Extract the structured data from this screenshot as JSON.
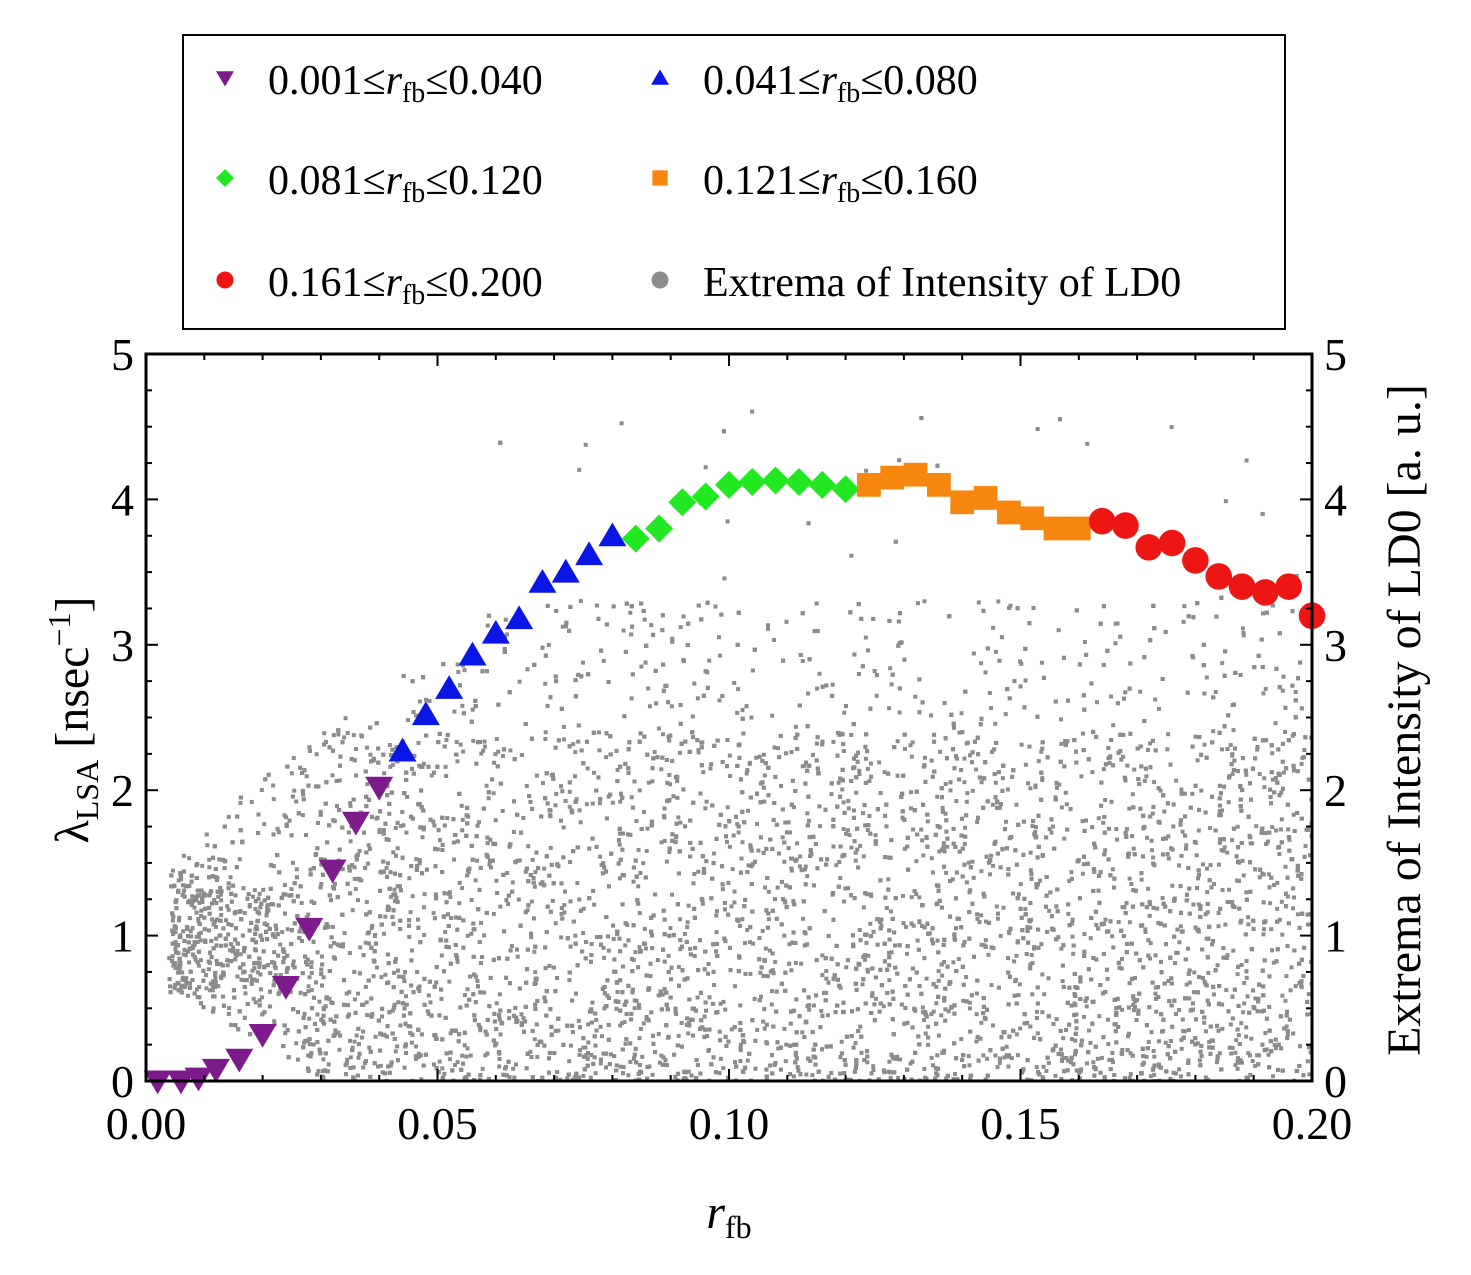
{
  "chart_data": {
    "type": "scatter",
    "title": "",
    "xlabel": {
      "main": "r",
      "sub": "fb"
    },
    "ylabel": {
      "main": "λ",
      "sub": "LSA",
      "unit_prefix": " [nsec",
      "sup": "−1",
      "unit_suffix": "]"
    },
    "y2label": "Extrema of Intensity of LD0 [a. u.]",
    "xlim": [
      0.0,
      0.2
    ],
    "ylim": [
      0,
      5
    ],
    "y2lim": [
      0,
      5
    ],
    "x_ticks": [
      "0.00",
      "0.05",
      "0.10",
      "0.15",
      "0.20"
    ],
    "x_tick_values": [
      0.0,
      0.05,
      0.1,
      0.15,
      0.2
    ],
    "y_ticks": [
      "0",
      "1",
      "2",
      "3",
      "4",
      "5"
    ],
    "y_tick_values": [
      0,
      1,
      2,
      3,
      4,
      5
    ],
    "grid": false,
    "legend_position": "top",
    "series": [
      {
        "name": "0.001≤r_fb≤0.040",
        "label_pre": "0.001≤",
        "label_var": "r",
        "label_sub": "fb",
        "label_post": "≤0.040",
        "marker": "triangle-down",
        "color": "#7d1a8c",
        "x": [
          0.002,
          0.006,
          0.009,
          0.012,
          0.016,
          0.02,
          0.024,
          0.028,
          0.032,
          0.036,
          0.04
        ],
        "y": [
          0.0,
          0.0,
          0.02,
          0.08,
          0.15,
          0.32,
          0.65,
          1.05,
          1.45,
          1.78,
          2.02
        ]
      },
      {
        "name": "0.041≤r_fb≤0.080",
        "label_pre": "0.041≤",
        "label_var": "r",
        "label_sub": "fb",
        "label_post": "≤0.080",
        "marker": "triangle-up",
        "color": "#0a16e6",
        "x": [
          0.044,
          0.048,
          0.052,
          0.056,
          0.06,
          0.064,
          0.068,
          0.072,
          0.076,
          0.08
        ],
        "y": [
          2.27,
          2.52,
          2.7,
          2.93,
          3.08,
          3.18,
          3.43,
          3.5,
          3.62,
          3.75
        ]
      },
      {
        "name": "0.081≤r_fb≤0.120",
        "label_pre": "0.081≤",
        "label_var": "r",
        "label_sub": "fb",
        "label_post": "≤0.120",
        "marker": "diamond",
        "color": "#22e822",
        "x": [
          0.084,
          0.088,
          0.092,
          0.096,
          0.1,
          0.104,
          0.108,
          0.112,
          0.116,
          0.12
        ],
        "y": [
          3.73,
          3.8,
          3.98,
          4.02,
          4.1,
          4.12,
          4.13,
          4.12,
          4.1,
          4.07
        ]
      },
      {
        "name": "0.121≤r_fb≤0.160",
        "label_pre": "0.121≤",
        "label_var": "r",
        "label_sub": "fb",
        "label_post": "≤0.160",
        "marker": "square",
        "color": "#f7870f",
        "x": [
          0.124,
          0.128,
          0.132,
          0.136,
          0.14,
          0.144,
          0.148,
          0.152,
          0.156,
          0.16
        ],
        "y": [
          4.1,
          4.15,
          4.17,
          4.1,
          3.98,
          4.01,
          3.91,
          3.87,
          3.8,
          3.8
        ]
      },
      {
        "name": "0.161≤r_fb≤0.200",
        "label_pre": "0.161≤",
        "label_var": "r",
        "label_sub": "fb",
        "label_post": "≤0.200",
        "marker": "circle",
        "color": "#ee1515",
        "x": [
          0.164,
          0.168,
          0.172,
          0.176,
          0.18,
          0.184,
          0.188,
          0.192,
          0.196,
          0.2
        ],
        "y": [
          3.85,
          3.82,
          3.67,
          3.7,
          3.58,
          3.47,
          3.4,
          3.36,
          3.4,
          3.2
        ]
      },
      {
        "name": "Extrema of Intensity of LD0",
        "label_pre": "Extrema of Intensity of LD0",
        "label_var": "",
        "label_sub": "",
        "label_post": "",
        "marker": "dot",
        "color": "#8c8c8c",
        "note": "dense scatter of many points, generated procedurally"
      }
    ]
  }
}
